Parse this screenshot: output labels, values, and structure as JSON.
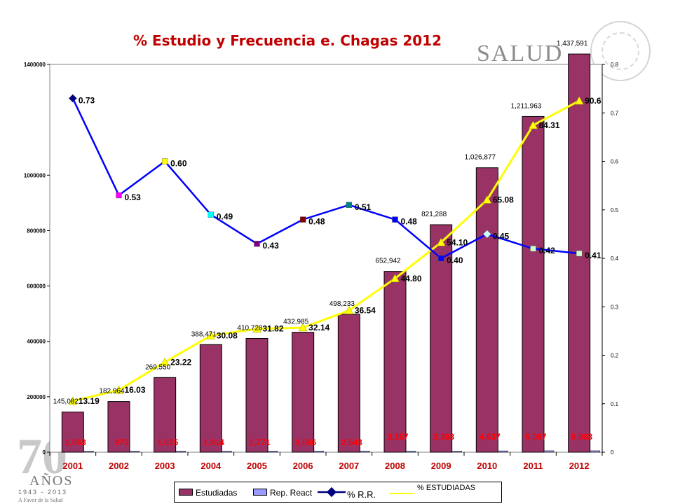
{
  "title": "% Estudio y Frecuencia e. Chagas 2012",
  "logo_text": "SALUD",
  "anniversary": {
    "big": "70",
    "word": "AÑOS",
    "years": "1943 - 2013",
    "tagline": "A Favor de la Salud"
  },
  "legend": {
    "estudiadas": "Estudiadas",
    "rep_react": "Rep. React",
    "rr": "% R.R.",
    "pct_estudiadas": "% ESTUDIADAS"
  },
  "chart_data": {
    "type": "bar",
    "title": "% Estudio y Frecuencia e. Chagas 2012",
    "categories": [
      "2001",
      "2002",
      "2003",
      "2004",
      "2005",
      "2006",
      "2007",
      "2008",
      "2009",
      "2010",
      "2011",
      "2012"
    ],
    "left_axis": {
      "ylim": [
        0,
        1400000
      ],
      "ticks": [
        "0",
        "200000",
        "400000",
        "600000",
        "800000",
        "1000000",
        "1400000"
      ]
    },
    "right_axis": {
      "ylim": [
        0,
        0.8
      ],
      "ticks": [
        "0",
        "0.1",
        "0.2",
        "0.3",
        "0.4",
        "0.5",
        "0.6",
        "0.7",
        "0.8"
      ]
    },
    "series": [
      {
        "name": "Estudiadas",
        "kind": "bar",
        "axis": "left",
        "color": "#993366",
        "values": [
          145082,
          182964,
          269550,
          388471,
          410728,
          432985,
          498233,
          652942,
          821288,
          1026877,
          1211963,
          1437591
        ],
        "labels": [
          "145,082",
          "182,964",
          "269,550",
          "388,471",
          "410,728",
          "432,985",
          "498,233",
          "652,942",
          "821,288",
          "1,026,877",
          "1,211,963",
          "1,437,591"
        ]
      },
      {
        "name": "Rep. React",
        "kind": "bar",
        "axis": "left",
        "color": "#9999ff",
        "values": [
          1063,
          973,
          1615,
          1914,
          1771,
          2066,
          2543,
          3157,
          3303,
          4637,
          5067,
          5003
        ],
        "labels": [
          "1,063",
          "973",
          "1,615",
          "1,914",
          "1,771",
          "2,066",
          "2,543",
          "3,157",
          "3,303",
          "4,637",
          "5,067",
          "5,003"
        ]
      },
      {
        "name": "% R.R.",
        "kind": "line",
        "axis": "right",
        "color": "#0000ff",
        "values": [
          0.73,
          0.53,
          0.6,
          0.49,
          0.43,
          0.48,
          0.51,
          0.48,
          0.4,
          0.45,
          0.42,
          0.41
        ],
        "labels": [
          "0.73",
          "0.53",
          "0.60",
          "0.49",
          "0.43",
          "0.48",
          "0.51",
          "0.48",
          "0.40",
          "0.45",
          "0.42",
          "0.41"
        ],
        "marker_colors": [
          "#000080",
          "#ff00ff",
          "#ffff00",
          "#00ffff",
          "#800080",
          "#800000",
          "#008080",
          "#0000ff",
          "#0000ff",
          "#ccffff",
          "#ccffcc",
          "#ccffcc"
        ]
      },
      {
        "name": "% ESTUDIADAS",
        "kind": "line",
        "axis": "pct",
        "color": "#ffff00",
        "values": [
          13.19,
          16.03,
          23.22,
          30.08,
          31.82,
          32.14,
          36.54,
          44.8,
          54.1,
          65.08,
          84.31,
          90.6
        ],
        "labels": [
          "13.19",
          "16.03",
          "23.22",
          "30.08",
          "31.82",
          "32.14",
          "36.54",
          "44.80",
          "54.10",
          "65.08",
          "84.31",
          "90.6"
        ]
      }
    ],
    "legend_position": "bottom",
    "colors": {
      "bar": "#993366",
      "rep": "#9999ff",
      "rr": "#0000ff",
      "pct": "#ffff00",
      "category_labels": "#c00000",
      "rep_labels": "#ff0000"
    }
  }
}
